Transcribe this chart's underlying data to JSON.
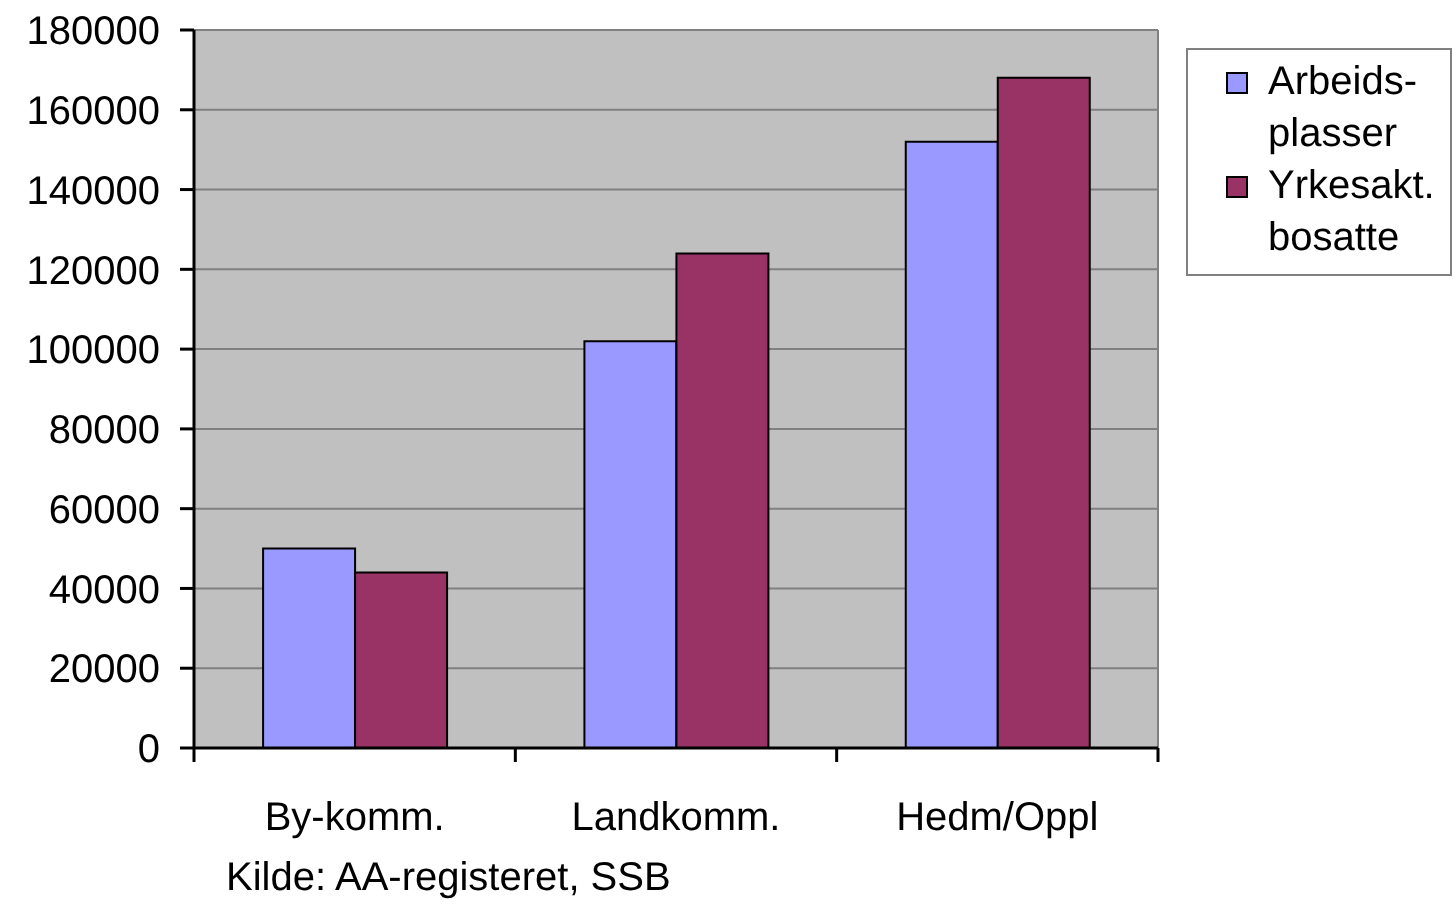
{
  "chart_data": {
    "type": "bar",
    "categories": [
      "By-komm.",
      "Landkomm.",
      "Hedm/Oppl"
    ],
    "series": [
      {
        "name": "Arbeids-plasser",
        "color": "#9999ff",
        "values": [
          50000,
          102000,
          152000
        ]
      },
      {
        "name": "Yrkesakt. bosatte",
        "color": "#993366",
        "values": [
          44000,
          124000,
          168000
        ]
      }
    ],
    "ylim": [
      0,
      180000
    ],
    "yticks": [
      0,
      20000,
      40000,
      60000,
      80000,
      100000,
      120000,
      140000,
      160000,
      180000
    ],
    "grid": "y",
    "legend": "top right",
    "annotations": [
      "Kilde: AA-registeret, SSB"
    ]
  }
}
